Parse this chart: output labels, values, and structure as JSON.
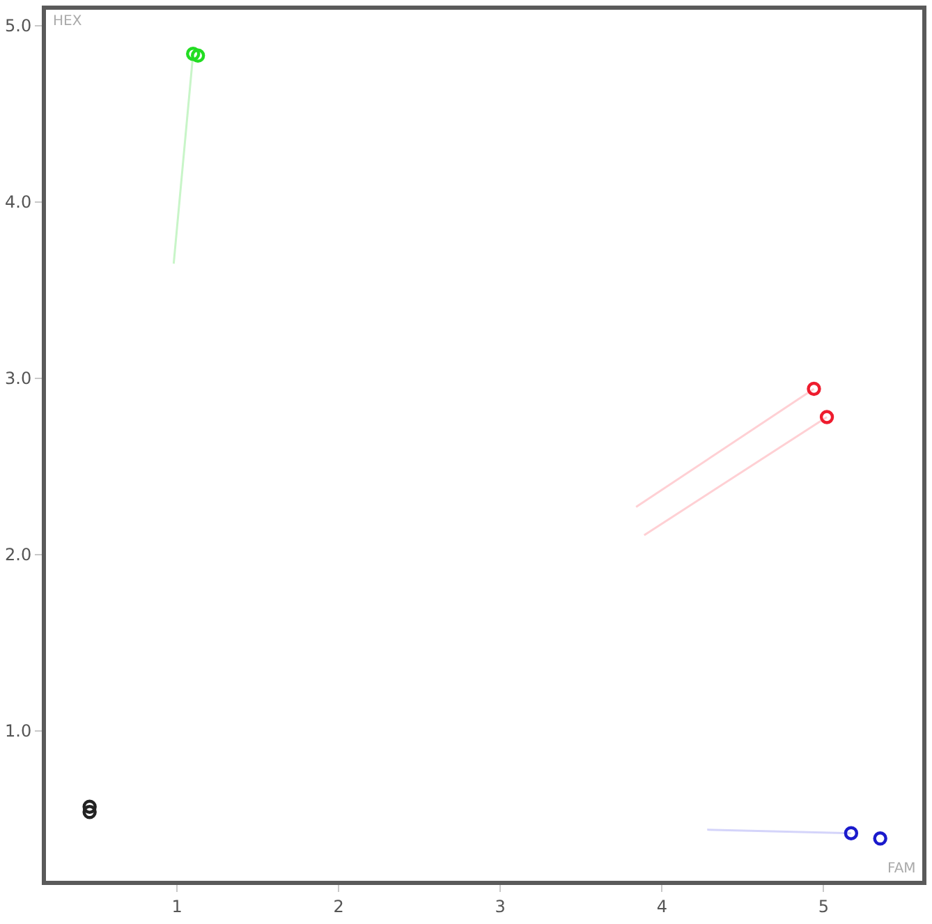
{
  "chart_data": {
    "type": "scatter",
    "xlabel": "FAM",
    "ylabel": "HEX",
    "xlim": [
      0.19,
      5.61
    ],
    "ylim": [
      0.15,
      5.09
    ],
    "xticks": [
      1,
      2,
      3,
      4,
      5
    ],
    "yticks": [
      {
        "value": 1,
        "label": "1.0"
      },
      {
        "value": 2,
        "label": "2.0"
      },
      {
        "value": 3,
        "label": "3.0"
      },
      {
        "value": 4,
        "label": "4.0"
      },
      {
        "value": 5,
        "label": "5.0"
      }
    ],
    "marker": "circle",
    "grid": false,
    "series": [
      {
        "type": "line",
        "marker": "none",
        "color": "#c8f5c8",
        "x": [
          0.98,
          1.1
        ],
        "values": [
          3.65,
          4.84
        ]
      },
      {
        "type": "line",
        "marker": "none",
        "color": "#ffd0d4",
        "x": [
          3.84,
          4.94
        ],
        "values": [
          2.27,
          2.94
        ]
      },
      {
        "type": "line",
        "marker": "none",
        "color": "#ffd0d4",
        "x": [
          3.89,
          5.02
        ],
        "values": [
          2.11,
          2.78
        ]
      },
      {
        "type": "line",
        "marker": "none",
        "color": "#d4d4fa",
        "x": [
          4.28,
          5.17
        ],
        "values": [
          0.44,
          0.42
        ]
      },
      {
        "color": "#22dd22",
        "x": [
          1.1,
          1.13
        ],
        "values": [
          4.84,
          4.83
        ]
      },
      {
        "color": "#ee1c2e",
        "x": [
          4.94,
          5.02
        ],
        "values": [
          2.94,
          2.78
        ]
      },
      {
        "color": "#1a1acc",
        "x": [
          5.17,
          5.35
        ],
        "values": [
          0.42,
          0.39
        ]
      },
      {
        "color": "#222222",
        "x": [
          0.46,
          0.46
        ],
        "values": [
          0.57,
          0.54
        ]
      }
    ]
  }
}
